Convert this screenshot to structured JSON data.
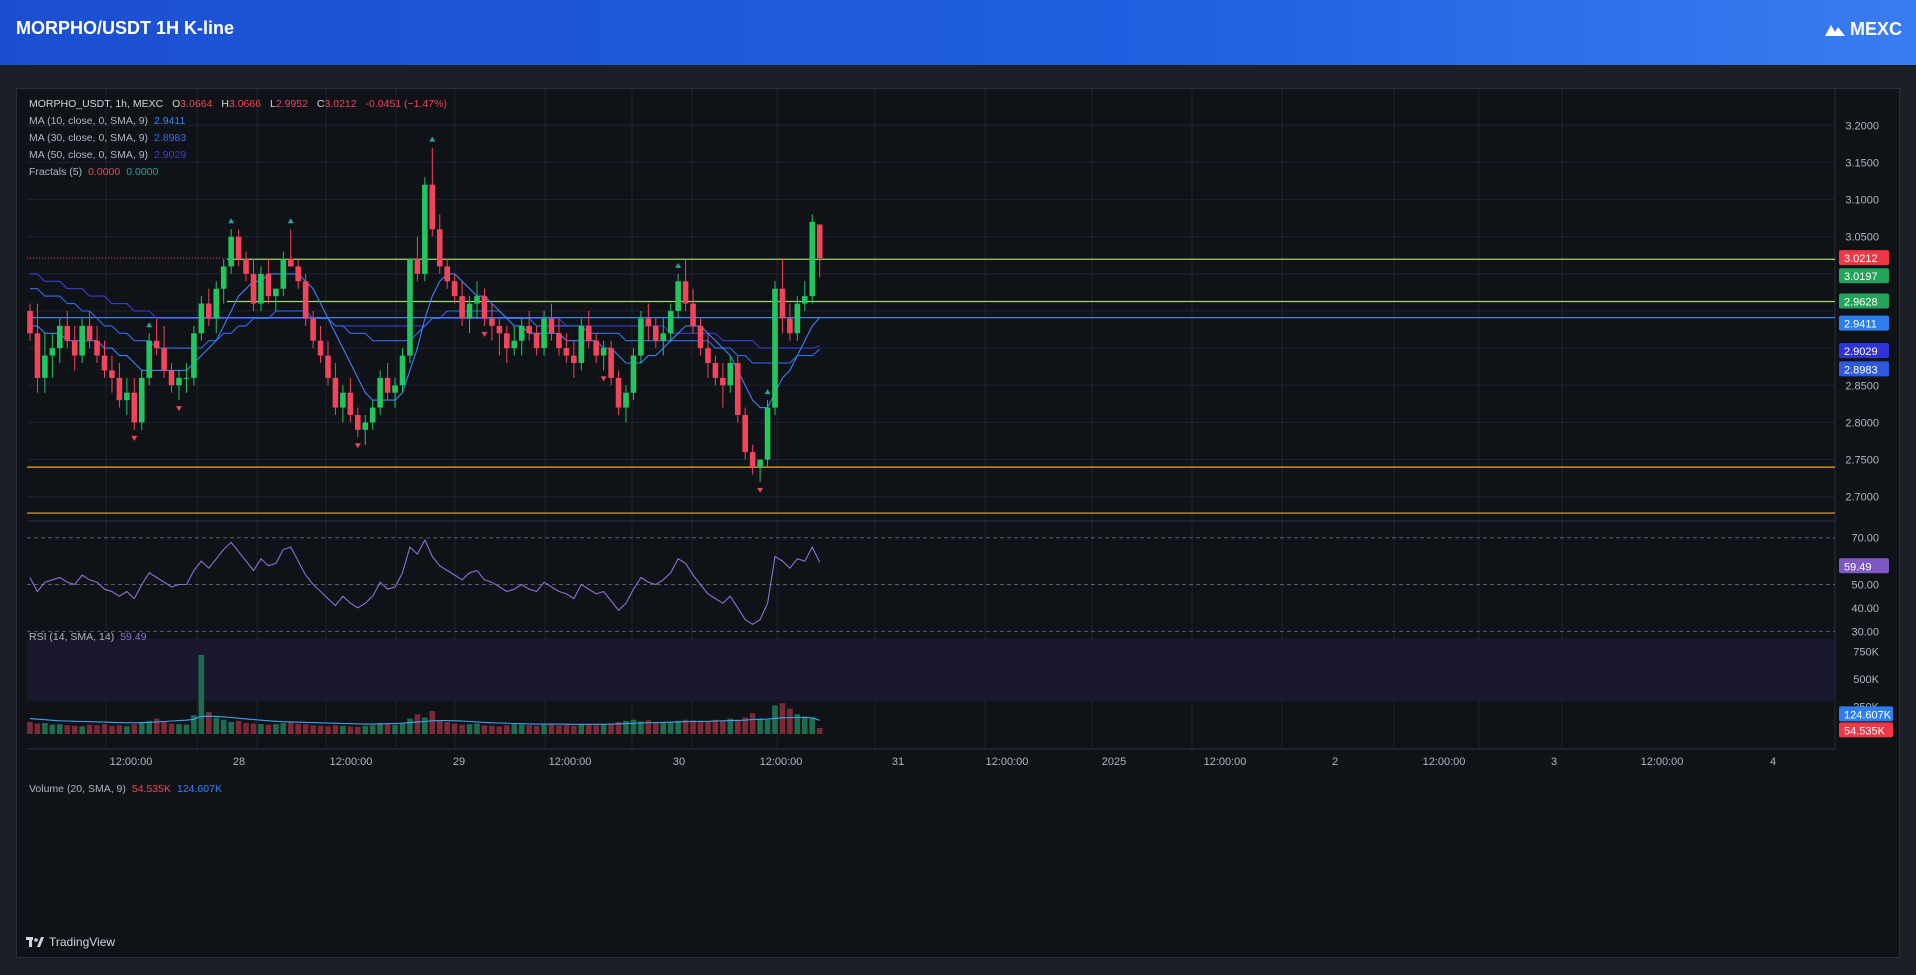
{
  "header": {
    "title": "MORPHO/USDT 1H K-line",
    "brand": "MEXC"
  },
  "footer": {
    "tradingview": "TradingView"
  },
  "legend": {
    "symbol": "MORPHO_USDT, 1h, MEXC",
    "o_label": "O",
    "o_val": "3.0664",
    "h_label": "H",
    "h_val": "3.0666",
    "l_label": "L",
    "l_val": "2.9952",
    "c_label": "C",
    "c_val": "3.0212",
    "change": "-0.0451 (−1.47%)",
    "ma10_label": "MA (10, close, 0, SMA, 9)",
    "ma10_val": "2.9411",
    "ma30_label": "MA (30, close, 0, SMA, 9)",
    "ma30_val": "2.8983",
    "ma50_label": "MA (50, close, 0, SMA, 9)",
    "ma50_val": "2.9029",
    "fractals_label": "Fractals (5)",
    "fractals_up": "0.0000",
    "fractals_down": "0.0000",
    "rsi_label": "RSI (14, SMA, 14)",
    "rsi_val": "59.49",
    "volume_label": "Volume (20, SMA, 9)",
    "volume_val": "54.535K",
    "volume_ma_val": "124.607K"
  },
  "badges": {
    "last": "3.0212",
    "green1": "3.0197",
    "green2": "2.9628",
    "ma10": "2.9411",
    "ma50": "2.9029",
    "ma30": "2.8983",
    "rsi": "59.49",
    "vol_ma": "124.607K",
    "vol": "54.535K"
  },
  "colors": {
    "up": "#26a69a",
    "up_bright": "#22c55e",
    "down": "#f0455a",
    "ma10": "#3b82f6",
    "ma30": "#2f6df0",
    "ma50": "#3b3bd6",
    "rsi": "#8c6fd6",
    "hline_green": "#9bd96a",
    "hline_orange": "#f5a623",
    "hline_blue": "#3b82f6"
  },
  "chart_data": {
    "type": "candlestick",
    "x_ticks": [
      "12:00:00",
      "28",
      "12:00:00",
      "29",
      "12:00:00",
      "30",
      "12:00:00",
      "31",
      "12:00:00",
      "2025",
      "12:00:00",
      "2",
      "12:00:00",
      "3",
      "12:00:00",
      "4"
    ],
    "price_axis": [
      "3.2000",
      "3.1500",
      "3.1000",
      "3.0500",
      "2.8500",
      "2.8000",
      "2.7500",
      "2.7000"
    ],
    "price_range": [
      2.67,
      3.23
    ],
    "rsi_axis": [
      "70.00",
      "50.00",
      "40.00",
      "30.00"
    ],
    "rsi_range": [
      28,
      75
    ],
    "volume_axis": [
      "750K",
      "500K",
      "250K"
    ],
    "volume_range": [
      0,
      820000
    ],
    "horizontal_lines": [
      {
        "price": 3.0197,
        "color": "green"
      },
      {
        "price": 2.9628,
        "color": "green"
      },
      {
        "price": 2.9411,
        "color": "blue"
      },
      {
        "price": 2.7398,
        "color": "orange"
      },
      {
        "price": 2.678,
        "color": "orange"
      }
    ],
    "candles": [
      [
        2.95,
        2.96,
        2.91,
        2.92
      ],
      [
        2.92,
        2.96,
        2.84,
        2.86
      ],
      [
        2.86,
        2.92,
        2.84,
        2.89
      ],
      [
        2.89,
        2.92,
        2.86,
        2.9
      ],
      [
        2.9,
        2.94,
        2.88,
        2.93
      ],
      [
        2.93,
        2.95,
        2.9,
        2.91
      ],
      [
        2.91,
        2.93,
        2.87,
        2.89
      ],
      [
        2.89,
        2.94,
        2.88,
        2.93
      ],
      [
        2.93,
        2.95,
        2.9,
        2.91
      ],
      [
        2.91,
        2.93,
        2.88,
        2.89
      ],
      [
        2.89,
        2.91,
        2.86,
        2.87
      ],
      [
        2.87,
        2.89,
        2.84,
        2.86
      ],
      [
        2.86,
        2.88,
        2.82,
        2.83
      ],
      [
        2.83,
        2.86,
        2.81,
        2.84
      ],
      [
        2.84,
        2.86,
        2.79,
        2.8
      ],
      [
        2.8,
        2.87,
        2.79,
        2.86
      ],
      [
        2.86,
        2.92,
        2.85,
        2.91
      ],
      [
        2.91,
        2.94,
        2.89,
        2.9
      ],
      [
        2.9,
        2.93,
        2.86,
        2.87
      ],
      [
        2.87,
        2.88,
        2.84,
        2.85
      ],
      [
        2.85,
        2.87,
        2.83,
        2.86
      ],
      [
        2.86,
        2.88,
        2.84,
        2.86
      ],
      [
        2.86,
        2.93,
        2.85,
        2.92
      ],
      [
        2.92,
        2.97,
        2.91,
        2.96
      ],
      [
        2.96,
        2.98,
        2.93,
        2.94
      ],
      [
        2.94,
        2.99,
        2.92,
        2.98
      ],
      [
        2.98,
        3.02,
        2.96,
        3.01
      ],
      [
        3.01,
        3.06,
        3.0,
        3.05
      ],
      [
        3.05,
        3.06,
        3.01,
        3.02
      ],
      [
        3.02,
        3.03,
        2.99,
        3.0
      ],
      [
        3.0,
        3.02,
        2.95,
        2.96
      ],
      [
        2.96,
        3.01,
        2.95,
        3.0
      ],
      [
        3.0,
        3.02,
        2.96,
        2.97
      ],
      [
        2.97,
        2.98,
        2.95,
        2.98
      ],
      [
        2.98,
        3.03,
        2.97,
        3.02
      ],
      [
        3.02,
        3.06,
        3.01,
        3.01
      ],
      [
        3.01,
        3.02,
        2.98,
        2.99
      ],
      [
        2.99,
        3.0,
        2.93,
        2.94
      ],
      [
        2.94,
        2.95,
        2.9,
        2.91
      ],
      [
        2.91,
        2.93,
        2.88,
        2.89
      ],
      [
        2.89,
        2.91,
        2.85,
        2.86
      ],
      [
        2.86,
        2.88,
        2.81,
        2.82
      ],
      [
        2.82,
        2.85,
        2.8,
        2.84
      ],
      [
        2.84,
        2.86,
        2.8,
        2.81
      ],
      [
        2.81,
        2.82,
        2.78,
        2.79
      ],
      [
        2.79,
        2.81,
        2.77,
        2.8
      ],
      [
        2.8,
        2.83,
        2.79,
        2.82
      ],
      [
        2.82,
        2.87,
        2.81,
        2.86
      ],
      [
        2.86,
        2.88,
        2.83,
        2.84
      ],
      [
        2.84,
        2.86,
        2.82,
        2.85
      ],
      [
        2.85,
        2.9,
        2.84,
        2.89
      ],
      [
        2.89,
        3.02,
        2.88,
        3.02
      ],
      [
        3.02,
        3.05,
        2.99,
        3.0
      ],
      [
        3.0,
        3.13,
        2.99,
        3.12
      ],
      [
        3.12,
        3.17,
        3.05,
        3.06
      ],
      [
        3.06,
        3.08,
        3.0,
        3.01
      ],
      [
        3.01,
        3.02,
        2.98,
        2.99
      ],
      [
        2.99,
        3.0,
        2.96,
        2.97
      ],
      [
        2.97,
        2.99,
        2.93,
        2.94
      ],
      [
        2.94,
        2.97,
        2.92,
        2.96
      ],
      [
        2.96,
        2.99,
        2.94,
        2.97
      ],
      [
        2.97,
        2.98,
        2.93,
        2.94
      ],
      [
        2.94,
        2.96,
        2.91,
        2.93
      ],
      [
        2.93,
        2.94,
        2.89,
        2.92
      ],
      [
        2.92,
        2.93,
        2.88,
        2.9
      ],
      [
        2.9,
        2.93,
        2.89,
        2.91
      ],
      [
        2.91,
        2.94,
        2.89,
        2.93
      ],
      [
        2.93,
        2.95,
        2.91,
        2.92
      ],
      [
        2.92,
        2.93,
        2.89,
        2.9
      ],
      [
        2.9,
        2.95,
        2.89,
        2.94
      ],
      [
        2.94,
        2.96,
        2.91,
        2.92
      ],
      [
        2.92,
        2.94,
        2.89,
        2.9
      ],
      [
        2.9,
        2.92,
        2.88,
        2.89
      ],
      [
        2.89,
        2.91,
        2.86,
        2.88
      ],
      [
        2.88,
        2.94,
        2.87,
        2.93
      ],
      [
        2.93,
        2.95,
        2.9,
        2.91
      ],
      [
        2.91,
        2.92,
        2.88,
        2.89
      ],
      [
        2.89,
        2.91,
        2.87,
        2.9
      ],
      [
        2.9,
        2.91,
        2.85,
        2.86
      ],
      [
        2.86,
        2.87,
        2.81,
        2.82
      ],
      [
        2.82,
        2.85,
        2.8,
        2.84
      ],
      [
        2.84,
        2.9,
        2.83,
        2.89
      ],
      [
        2.89,
        2.95,
        2.88,
        2.94
      ],
      [
        2.94,
        2.96,
        2.91,
        2.93
      ],
      [
        2.93,
        2.94,
        2.9,
        2.91
      ],
      [
        2.91,
        2.94,
        2.89,
        2.92
      ],
      [
        2.92,
        2.96,
        2.91,
        2.95
      ],
      [
        2.95,
        3.0,
        2.94,
        2.99
      ],
      [
        2.99,
        3.02,
        2.95,
        2.96
      ],
      [
        2.96,
        2.98,
        2.92,
        2.93
      ],
      [
        2.93,
        2.94,
        2.89,
        2.9
      ],
      [
        2.9,
        2.92,
        2.86,
        2.88
      ],
      [
        2.88,
        2.89,
        2.85,
        2.86
      ],
      [
        2.86,
        2.88,
        2.82,
        2.85
      ],
      [
        2.85,
        2.89,
        2.84,
        2.88
      ],
      [
        2.88,
        2.89,
        2.8,
        2.81
      ],
      [
        2.81,
        2.82,
        2.75,
        2.76
      ],
      [
        2.76,
        2.77,
        2.73,
        2.74
      ],
      [
        2.74,
        2.75,
        2.72,
        2.75
      ],
      [
        2.75,
        2.83,
        2.74,
        2.82
      ],
      [
        2.82,
        2.99,
        2.81,
        2.98
      ],
      [
        2.98,
        3.02,
        2.92,
        2.94
      ],
      [
        2.94,
        2.96,
        2.91,
        2.92
      ],
      [
        2.92,
        2.97,
        2.91,
        2.96
      ],
      [
        2.96,
        2.99,
        2.95,
        2.97
      ],
      [
        2.97,
        3.08,
        2.96,
        3.07
      ],
      [
        3.0664,
        3.0666,
        2.9952,
        3.0212
      ]
    ],
    "ma10": [
      2.93,
      2.93,
      2.92,
      2.92,
      2.92,
      2.91,
      2.91,
      2.91,
      2.91,
      2.91,
      2.9,
      2.9,
      2.89,
      2.89,
      2.88,
      2.87,
      2.87,
      2.87,
      2.87,
      2.87,
      2.87,
      2.87,
      2.88,
      2.89,
      2.9,
      2.91,
      2.93,
      2.95,
      2.97,
      2.98,
      2.99,
      2.99,
      3.0,
      3.0,
      3.0,
      3.0,
      3.0,
      2.99,
      2.98,
      2.96,
      2.94,
      2.92,
      2.9,
      2.88,
      2.86,
      2.84,
      2.83,
      2.83,
      2.83,
      2.83,
      2.84,
      2.87,
      2.9,
      2.94,
      2.97,
      2.99,
      3.0,
      3.0,
      2.99,
      2.98,
      2.97,
      2.97,
      2.96,
      2.95,
      2.94,
      2.93,
      2.93,
      2.92,
      2.92,
      2.92,
      2.92,
      2.92,
      2.91,
      2.91,
      2.91,
      2.91,
      2.91,
      2.9,
      2.9,
      2.89,
      2.88,
      2.88,
      2.88,
      2.89,
      2.89,
      2.9,
      2.91,
      2.92,
      2.93,
      2.93,
      2.93,
      2.92,
      2.91,
      2.9,
      2.89,
      2.87,
      2.85,
      2.83,
      2.82,
      2.82,
      2.84,
      2.86,
      2.87,
      2.89,
      2.91,
      2.93,
      2.9411
    ],
    "ma30": [
      2.98,
      2.98,
      2.97,
      2.97,
      2.97,
      2.96,
      2.96,
      2.95,
      2.95,
      2.94,
      2.93,
      2.93,
      2.92,
      2.92,
      2.91,
      2.91,
      2.91,
      2.9,
      2.9,
      2.9,
      2.9,
      2.9,
      2.9,
      2.9,
      2.91,
      2.91,
      2.92,
      2.92,
      2.93,
      2.93,
      2.94,
      2.94,
      2.94,
      2.95,
      2.95,
      2.95,
      2.95,
      2.95,
      2.94,
      2.94,
      2.94,
      2.93,
      2.93,
      2.92,
      2.92,
      2.92,
      2.91,
      2.91,
      2.91,
      2.91,
      2.91,
      2.91,
      2.92,
      2.93,
      2.94,
      2.94,
      2.95,
      2.95,
      2.95,
      2.95,
      2.95,
      2.95,
      2.95,
      2.95,
      2.94,
      2.94,
      2.94,
      2.94,
      2.93,
      2.93,
      2.93,
      2.93,
      2.93,
      2.93,
      2.93,
      2.92,
      2.92,
      2.92,
      2.92,
      2.92,
      2.91,
      2.91,
      2.91,
      2.91,
      2.91,
      2.91,
      2.91,
      2.91,
      2.91,
      2.91,
      2.91,
      2.91,
      2.9,
      2.9,
      2.9,
      2.89,
      2.89,
      2.88,
      2.88,
      2.88,
      2.88,
      2.88,
      2.88,
      2.89,
      2.89,
      2.89,
      2.8983
    ],
    "ma50": [
      3.0,
      3.0,
      2.99,
      2.99,
      2.99,
      2.98,
      2.98,
      2.98,
      2.97,
      2.97,
      2.97,
      2.96,
      2.96,
      2.96,
      2.95,
      2.95,
      2.95,
      2.94,
      2.94,
      2.94,
      2.94,
      2.94,
      2.94,
      2.94,
      2.94,
      2.94,
      2.94,
      2.94,
      2.94,
      2.94,
      2.94,
      2.94,
      2.94,
      2.94,
      2.94,
      2.94,
      2.94,
      2.94,
      2.94,
      2.94,
      2.94,
      2.93,
      2.93,
      2.93,
      2.93,
      2.93,
      2.93,
      2.93,
      2.93,
      2.93,
      2.93,
      2.93,
      2.93,
      2.93,
      2.94,
      2.94,
      2.94,
      2.94,
      2.94,
      2.94,
      2.94,
      2.94,
      2.94,
      2.94,
      2.94,
      2.94,
      2.94,
      2.94,
      2.94,
      2.94,
      2.94,
      2.94,
      2.93,
      2.93,
      2.93,
      2.93,
      2.93,
      2.93,
      2.93,
      2.93,
      2.93,
      2.93,
      2.93,
      2.93,
      2.93,
      2.93,
      2.92,
      2.92,
      2.92,
      2.92,
      2.92,
      2.92,
      2.92,
      2.91,
      2.91,
      2.91,
      2.91,
      2.91,
      2.9,
      2.9,
      2.9,
      2.9,
      2.9,
      2.9,
      2.9,
      2.9,
      2.9029
    ],
    "rsi": [
      53,
      47,
      51,
      52,
      53,
      51,
      50,
      54,
      52,
      51,
      48,
      47,
      45,
      47,
      44,
      50,
      55,
      53,
      51,
      49,
      50,
      50,
      56,
      60,
      57,
      61,
      65,
      68,
      64,
      60,
      56,
      61,
      58,
      59,
      65,
      66,
      60,
      54,
      50,
      47,
      44,
      41,
      45,
      42,
      40,
      42,
      45,
      51,
      48,
      49,
      55,
      66,
      63,
      69,
      62,
      58,
      56,
      54,
      52,
      55,
      56,
      52,
      51,
      49,
      47,
      48,
      50,
      48,
      47,
      51,
      49,
      47,
      46,
      44,
      50,
      48,
      46,
      47,
      43,
      39,
      42,
      48,
      53,
      51,
      50,
      52,
      55,
      61,
      59,
      54,
      50,
      46,
      44,
      42,
      45,
      40,
      35,
      33,
      35,
      42,
      62,
      60,
      57,
      61,
      60,
      66,
      59.49
    ],
    "volume": [
      110,
      95,
      100,
      85,
      90,
      80,
      75,
      70,
      85,
      80,
      90,
      75,
      80,
      70,
      90,
      100,
      120,
      140,
      110,
      95,
      90,
      85,
      170,
      720,
      200,
      150,
      130,
      110,
      120,
      100,
      95,
      90,
      85,
      90,
      100,
      110,
      95,
      90,
      80,
      75,
      70,
      80,
      75,
      70,
      65,
      75,
      80,
      100,
      90,
      85,
      95,
      140,
      180,
      150,
      210,
      120,
      110,
      95,
      85,
      90,
      95,
      80,
      75,
      70,
      80,
      90,
      85,
      80,
      75,
      85,
      90,
      80,
      85,
      75,
      90,
      85,
      80,
      90,
      95,
      110,
      120,
      130,
      115,
      125,
      100,
      110,
      105,
      120,
      130,
      125,
      120,
      115,
      130,
      125,
      140,
      130,
      150,
      190,
      140,
      130,
      260,
      280,
      230,
      180,
      160,
      150,
      54.535
    ],
    "volume_ma": [
      140,
      135,
      130,
      125,
      120,
      118,
      116,
      114,
      112,
      110,
      108,
      106,
      104,
      102,
      102,
      104,
      106,
      110,
      114,
      118,
      122,
      126,
      134,
      160,
      162,
      160,
      156,
      150,
      144,
      138,
      132,
      126,
      120,
      116,
      112,
      110,
      108,
      106,
      104,
      102,
      100,
      98,
      96,
      94,
      92,
      90,
      90,
      92,
      94,
      96,
      98,
      104,
      110,
      114,
      120,
      122,
      122,
      120,
      118,
      114,
      110,
      106,
      102,
      100,
      98,
      96,
      94,
      92,
      90,
      90,
      90,
      90,
      89,
      88,
      88,
      88,
      88,
      88,
      90,
      92,
      95,
      98,
      100,
      102,
      104,
      106,
      108,
      110,
      112,
      114,
      115,
      116,
      118,
      120,
      122,
      124,
      126,
      132,
      134,
      136,
      142,
      148,
      150,
      150,
      150,
      148,
      124.607
    ]
  }
}
